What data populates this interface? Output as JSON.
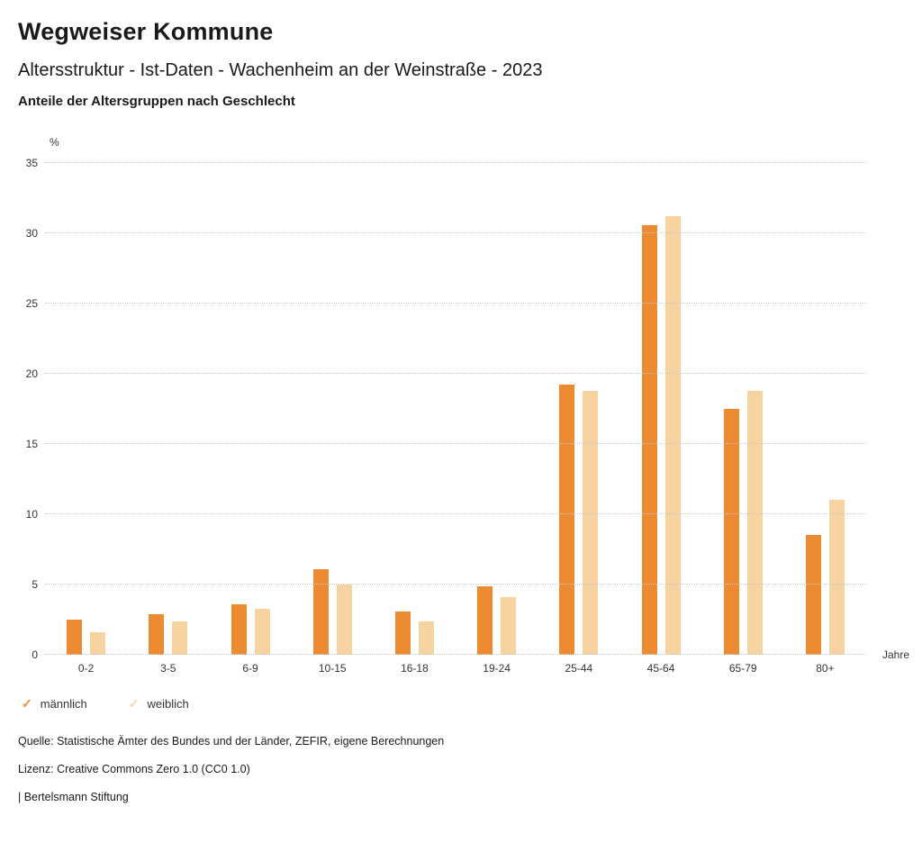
{
  "header": {
    "title": "Wegweiser Kommune",
    "subtitle": "Altersstruktur - Ist-Daten - Wachenheim an der Weinstraße - 2023",
    "subheading": "Anteile der Altersgruppen nach Geschlecht"
  },
  "chart_data": {
    "type": "bar",
    "title": "Anteile der Altersgruppen nach Geschlecht",
    "categories": [
      "0-2",
      "3-5",
      "6-9",
      "10-15",
      "16-18",
      "19-24",
      "25-44",
      "45-64",
      "65-79",
      "80+"
    ],
    "series": [
      {
        "name": "männlich",
        "color": "#ED8B33",
        "values": [
          2.5,
          2.9,
          3.6,
          6.1,
          3.1,
          4.9,
          19.2,
          30.6,
          17.5,
          8.5
        ]
      },
      {
        "name": "weiblich",
        "color": "#F8D3A2",
        "values": [
          1.6,
          2.4,
          3.3,
          5.0,
          2.4,
          4.1,
          18.8,
          31.2,
          18.8,
          11.0
        ]
      }
    ],
    "ylabel": "%",
    "xlabel": "Jahre",
    "ylim": [
      0,
      35
    ],
    "ytick_step": 5,
    "grid": "dotted horizontal",
    "legend_position": "bottom-left"
  },
  "footer": {
    "source": "Quelle: Statistische Ämter des Bundes und der Länder, ZEFIR, eigene Berechnungen",
    "license": "Lizenz: Creative Commons Zero 1.0 (CC0 1.0)",
    "brand": "| Bertelsmann Stiftung"
  }
}
